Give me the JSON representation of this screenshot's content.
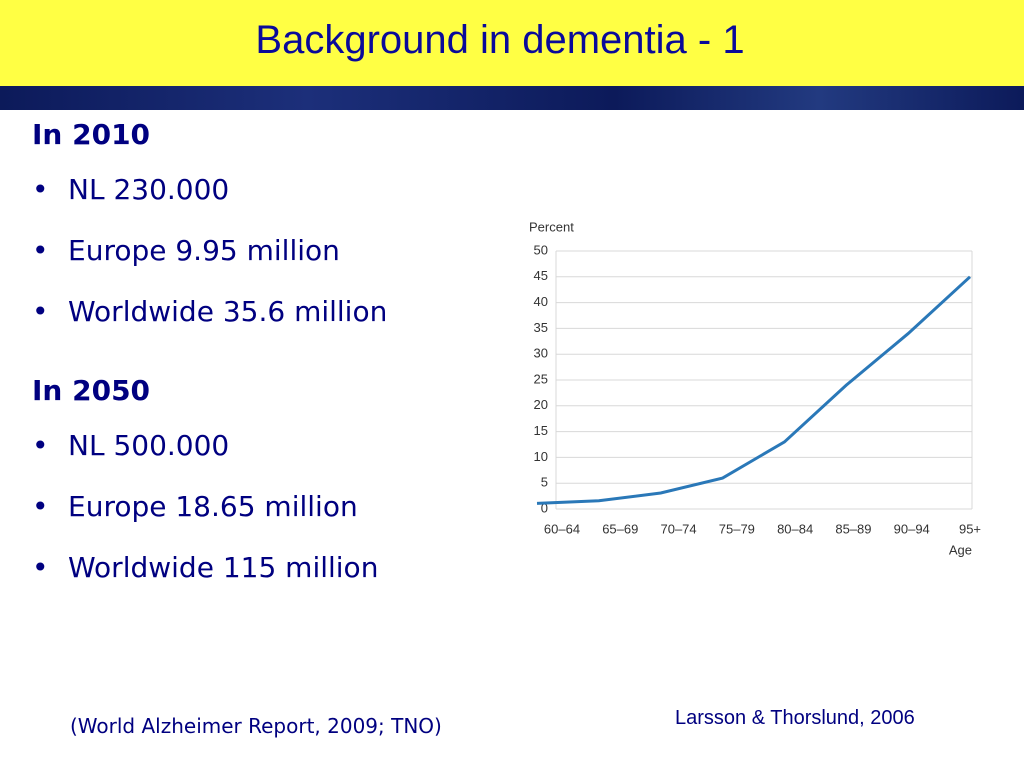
{
  "title": "Background in dementia - 1",
  "sections": [
    {
      "heading": "In 2010",
      "bullets": [
        "NL 230.000",
        "Europe 9.95 million",
        "Worldwide 35.6 million"
      ]
    },
    {
      "heading": "In 2050",
      "bullets": [
        "NL 500.000",
        "Europe 18.65 million",
        "Worldwide 115 million"
      ]
    }
  ],
  "note": "(World Alzheimer Report, 2009; TNO)",
  "credit": "Larsson & Thorslund, 2006",
  "chart_data": {
    "type": "line",
    "y_label": "Percent",
    "x_label": "Age",
    "categories": [
      "60–64",
      "65–69",
      "70–74",
      "75–79",
      "80–84",
      "85–89",
      "90–94",
      "95+"
    ],
    "values": [
      1.1,
      1.6,
      3.1,
      6,
      13,
      24,
      34,
      45
    ],
    "color": "#2a78b8",
    "ylim": [
      0,
      50
    ],
    "yticks": [
      0,
      5,
      10,
      15,
      20,
      25,
      30,
      35,
      40,
      45,
      50
    ],
    "grid": true
  }
}
